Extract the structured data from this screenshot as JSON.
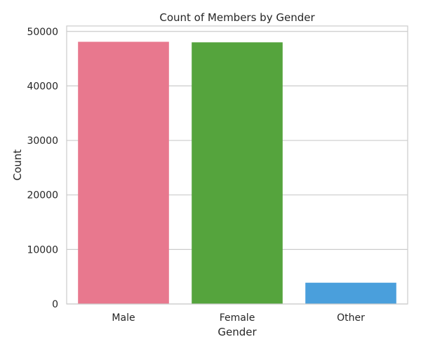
{
  "chart_data": {
    "type": "bar",
    "title": "Count of Members by Gender",
    "xlabel": "Gender",
    "ylabel": "Count",
    "categories": [
      "Male",
      "Female",
      "Other"
    ],
    "values": [
      48100,
      48000,
      3900
    ],
    "colors": [
      "#e8788e",
      "#55a43d",
      "#4a9fdc"
    ],
    "ylim": [
      0,
      51000
    ],
    "yticks": [
      0,
      10000,
      20000,
      30000,
      40000,
      50000
    ],
    "grid": "horizontal",
    "legend": "none"
  }
}
